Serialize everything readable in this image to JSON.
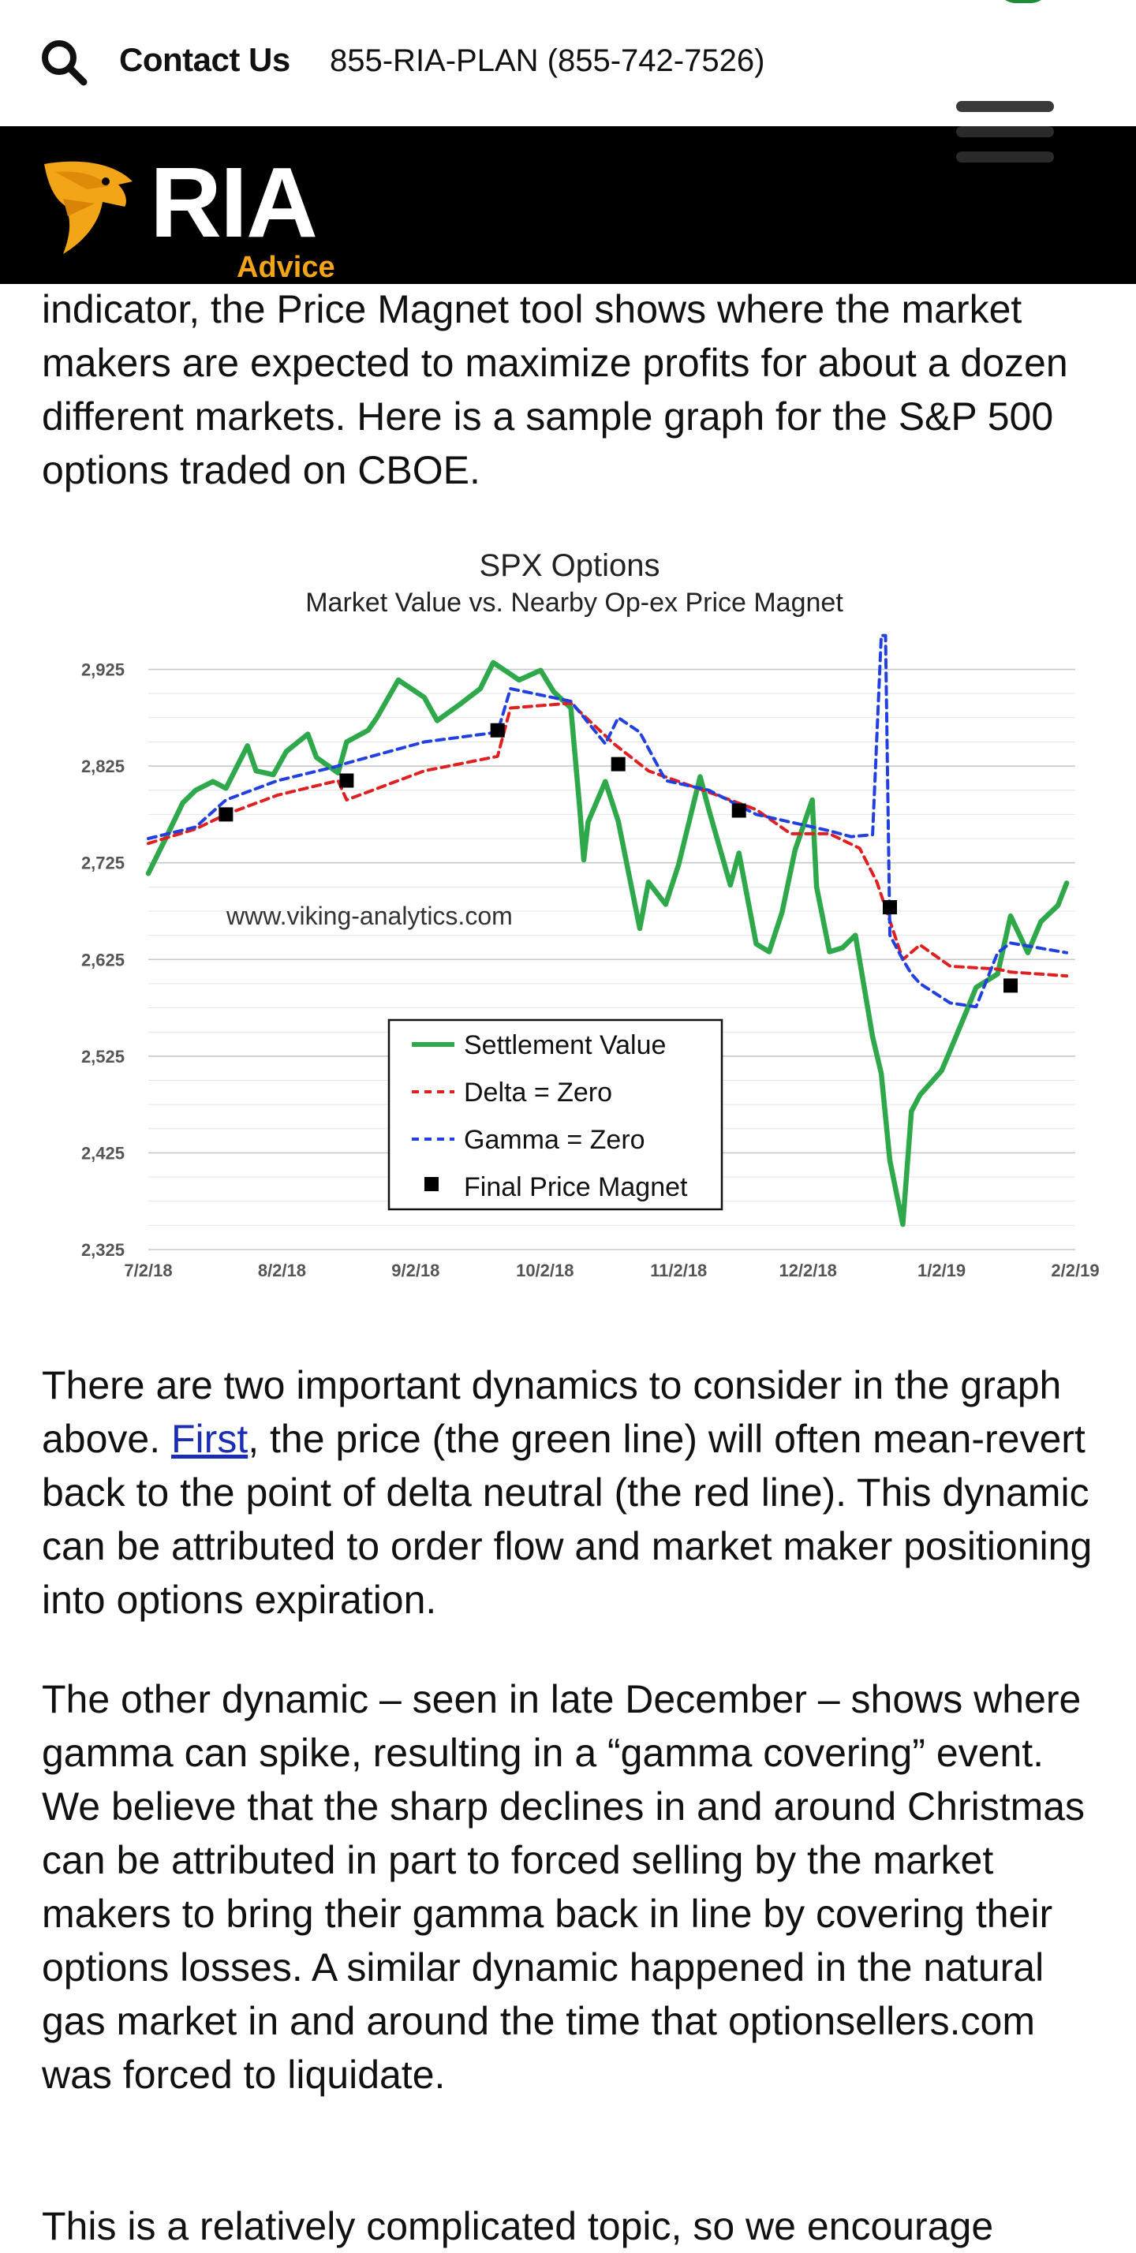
{
  "topbar": {
    "search_icon": "search-icon",
    "contact_label": "Contact Us",
    "phone": "855-RIA-PLAN (855-742-7526)"
  },
  "header": {
    "logo_text": "RIA",
    "logo_subtext": "Advice",
    "menu_icon": "hamburger-menu-icon",
    "colors": {
      "background": "#000000",
      "accent": "#f2a516"
    }
  },
  "article": {
    "p1": "indicator, the Price Magnet tool shows where the market makers are expected to maximize profits for about a dozen different markets.  Here is a sample graph for the S&P 500 options traded on CBOE.",
    "p2_before_link": "There are two important dynamics to consider in the graph above.  ",
    "p2_link": "First",
    "p2_after_link": ", the price (the green line) will often mean-revert back to the point of delta neutral (the red line).  This dynamic can be attributed to order flow and market maker positioning into options expiration.",
    "p3": "The other dynamic – seen in late December – shows where gamma can spike, resulting in a “gamma covering” event.  We believe that the sharp declines in and around Christmas can be attributed in part to forced selling by the market makers to bring their gamma back in line by covering their options losses.  A similar dynamic happened in the natural gas market in and around the time that optionsellers.com was forced to liquidate.",
    "p4": "This is a relatively complicated topic, so we encourage"
  },
  "chart_data": {
    "type": "line",
    "title": "SPX Options",
    "subtitle": "Market Value vs. Nearby Op-ex Price Magnet",
    "watermark": "www.viking-analytics.com",
    "xlabel": "",
    "ylabel": "",
    "x_tick_labels": [
      "7/2/18",
      "8/2/18",
      "9/2/18",
      "10/2/18",
      "11/2/18",
      "12/2/18",
      "1/2/19",
      "2/2/19"
    ],
    "y_tick_labels": [
      "2,925",
      "2,825",
      "2,725",
      "2,625",
      "2,525",
      "2,425",
      "2,325"
    ],
    "ylim": [
      2325,
      2945
    ],
    "grid": true,
    "legend_position": "center-left",
    "series": [
      {
        "name": "Settlement Value",
        "color": "#2ea84a",
        "style": "solid",
        "x": [
          "2018-07-02",
          "2018-07-06",
          "2018-07-10",
          "2018-07-13",
          "2018-07-17",
          "2018-07-20",
          "2018-07-25",
          "2018-07-27",
          "2018-07-31",
          "2018-08-03",
          "2018-08-08",
          "2018-08-10",
          "2018-08-15",
          "2018-08-17",
          "2018-08-22",
          "2018-08-24",
          "2018-08-29",
          "2018-09-04",
          "2018-09-07",
          "2018-09-12",
          "2018-09-17",
          "2018-09-20",
          "2018-09-24",
          "2018-09-26",
          "2018-10-01",
          "2018-10-04",
          "2018-10-08",
          "2018-10-10",
          "2018-10-11",
          "2018-10-12",
          "2018-10-16",
          "2018-10-19",
          "2018-10-24",
          "2018-10-26",
          "2018-10-30",
          "2018-11-02",
          "2018-11-07",
          "2018-11-09",
          "2018-11-14",
          "2018-11-16",
          "2018-11-20",
          "2018-11-23",
          "2018-11-26",
          "2018-11-29",
          "2018-12-03",
          "2018-12-04",
          "2018-12-07",
          "2018-12-10",
          "2018-12-13",
          "2018-12-17",
          "2018-12-19",
          "2018-12-21",
          "2018-12-24",
          "2018-12-26",
          "2018-12-28",
          "2019-01-02",
          "2019-01-04",
          "2019-01-08",
          "2019-01-10",
          "2019-01-15",
          "2019-01-18",
          "2019-01-22",
          "2019-01-25",
          "2019-01-29",
          "2019-01-31"
        ],
        "values": [
          2714,
          2750,
          2787,
          2800,
          2809,
          2802,
          2846,
          2820,
          2816,
          2840,
          2858,
          2834,
          2818,
          2850,
          2862,
          2875,
          2914,
          2896,
          2872,
          2888,
          2905,
          2932,
          2920,
          2914,
          2924,
          2902,
          2885,
          2785,
          2728,
          2767,
          2809,
          2768,
          2657,
          2705,
          2682,
          2723,
          2814,
          2780,
          2702,
          2735,
          2641,
          2633,
          2674,
          2738,
          2790,
          2700,
          2633,
          2637,
          2650,
          2545,
          2507,
          2417,
          2351,
          2468,
          2485,
          2510,
          2531,
          2574,
          2596,
          2610,
          2670,
          2632,
          2664,
          2681,
          2704
        ]
      },
      {
        "name": "Delta = Zero",
        "color": "#e02020",
        "style": "dashed",
        "x": [
          "2018-07-02",
          "2018-07-13",
          "2018-07-20",
          "2018-08-01",
          "2018-08-15",
          "2018-08-17",
          "2018-09-04",
          "2018-09-21",
          "2018-09-24",
          "2018-10-08",
          "2018-10-18",
          "2018-10-26",
          "2018-11-09",
          "2018-11-20",
          "2018-11-28",
          "2018-12-07",
          "2018-12-14",
          "2018-12-18",
          "2018-12-21",
          "2018-12-24",
          "2018-12-28",
          "2019-01-04",
          "2019-01-15",
          "2019-01-18",
          "2019-01-31"
        ],
        "values": [
          2745,
          2760,
          2775,
          2795,
          2810,
          2790,
          2820,
          2835,
          2885,
          2890,
          2848,
          2820,
          2798,
          2780,
          2755,
          2755,
          2740,
          2705,
          2665,
          2625,
          2640,
          2618,
          2615,
          2612,
          2608
        ]
      },
      {
        "name": "Gamma = Zero",
        "color": "#2240e0",
        "style": "dashed",
        "x": [
          "2018-07-02",
          "2018-07-13",
          "2018-07-20",
          "2018-08-01",
          "2018-08-15",
          "2018-08-17",
          "2018-09-04",
          "2018-09-21",
          "2018-09-24",
          "2018-10-08",
          "2018-10-16",
          "2018-10-19",
          "2018-10-24",
          "2018-10-30",
          "2018-11-09",
          "2018-11-20",
          "2018-12-07",
          "2018-12-12",
          "2018-12-17",
          "2018-12-19",
          "2018-12-20",
          "2018-12-21",
          "2018-12-24",
          "2018-12-26",
          "2018-12-28",
          "2019-01-04",
          "2019-01-10",
          "2019-01-15",
          "2019-01-18",
          "2019-01-31"
        ],
        "values": [
          2750,
          2762,
          2790,
          2810,
          2825,
          2828,
          2850,
          2860,
          2905,
          2892,
          2848,
          2875,
          2860,
          2810,
          2800,
          2775,
          2758,
          2752,
          2754,
          2960,
          2960,
          2650,
          2625,
          2610,
          2600,
          2580,
          2576,
          2632,
          2642,
          2632
        ]
      },
      {
        "name": "Final Price Magnet",
        "color": "#000000",
        "style": "marker",
        "x": [
          "2018-07-20",
          "2018-08-17",
          "2018-09-21",
          "2018-10-19",
          "2018-11-16",
          "2018-12-21",
          "2019-01-18"
        ],
        "values": [
          2775,
          2810,
          2862,
          2827,
          2779,
          2679,
          2598
        ]
      }
    ]
  }
}
